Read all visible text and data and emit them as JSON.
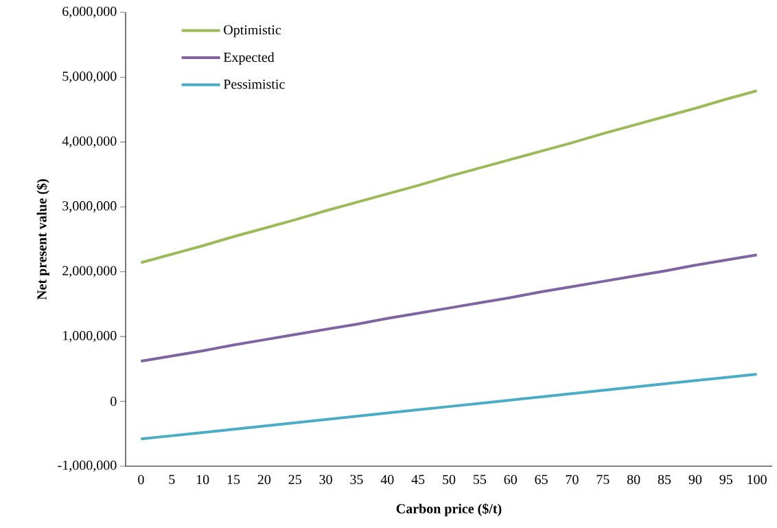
{
  "chart_data": {
    "type": "line",
    "xlabel": "Carbon price ($/t)",
    "ylabel": "Net present value ($)",
    "categories": [
      "0",
      "5",
      "10",
      "15",
      "20",
      "25",
      "30",
      "35",
      "40",
      "45",
      "50",
      "55",
      "60",
      "65",
      "70",
      "75",
      "80",
      "85",
      "90",
      "95",
      "100"
    ],
    "series": [
      {
        "name": "Optimistic",
        "color": "#9bbb59",
        "values": [
          2140000,
          2270000,
          2400000,
          2540000,
          2670000,
          2800000,
          2940000,
          3070000,
          3200000,
          3330000,
          3470000,
          3600000,
          3730000,
          3860000,
          3990000,
          4130000,
          4260000,
          4390000,
          4520000,
          4660000,
          4790000
        ]
      },
      {
        "name": "Expected",
        "color": "#8064a2",
        "values": [
          620000,
          700000,
          780000,
          870000,
          950000,
          1030000,
          1110000,
          1190000,
          1280000,
          1360000,
          1440000,
          1520000,
          1600000,
          1690000,
          1770000,
          1850000,
          1930000,
          2010000,
          2100000,
          2180000,
          2260000
        ]
      },
      {
        "name": "Pessimistic",
        "color": "#4bacc6",
        "values": [
          -580000,
          -530000,
          -480000,
          -430000,
          -380000,
          -330000,
          -280000,
          -230000,
          -180000,
          -130000,
          -80000,
          -30000,
          20000,
          70000,
          120000,
          170000,
          220000,
          270000,
          320000,
          370000,
          420000
        ]
      }
    ],
    "ylim": [
      -1000000,
      6000000
    ],
    "yticks": [
      {
        "value": -1000000,
        "label": "-1,000,000"
      },
      0,
      {
        "value": 1000000,
        "label": "1,000,000"
      },
      {
        "value": 2000000,
        "label": "2,000,000"
      },
      {
        "value": 3000000,
        "label": "3,000,000"
      },
      {
        "value": 4000000,
        "label": "4,000,000"
      },
      {
        "value": 5000000,
        "label": "5,000,000"
      },
      {
        "value": 6000000,
        "label": "6,000,000"
      }
    ],
    "legend": "top left",
    "marker": "none",
    "line_style": "solid",
    "grid": false
  }
}
